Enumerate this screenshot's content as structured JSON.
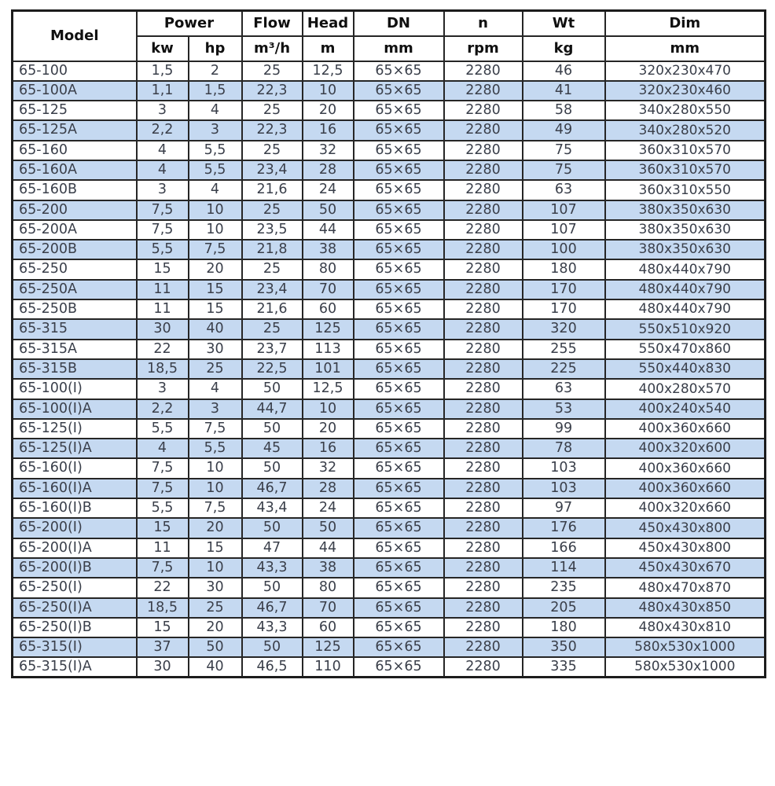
{
  "colors": {
    "stripe_blue": "#c5d9f1",
    "row_white": "#ffffff",
    "border": "#262626",
    "header_text": "#101010",
    "body_text": "#3a3f4a"
  },
  "table": {
    "header": {
      "model": "Model",
      "power": "Power",
      "flow": "Flow",
      "head": "Head",
      "dn": "DN",
      "n": "n",
      "wt": "Wt",
      "dim": "Dim",
      "units": [
        "kw",
        "hp",
        "m³/h",
        "m",
        "mm",
        "rpm",
        "kg",
        "mm"
      ]
    },
    "rows": [
      {
        "model": "65-100",
        "kw": "1,5",
        "hp": "2",
        "flow": "25",
        "head": "12,5",
        "dn": "65×65",
        "rpm": "2280",
        "wt": "46",
        "dim": "320x230x470"
      },
      {
        "model": "65-100A",
        "kw": "1,1",
        "hp": "1,5",
        "flow": "22,3",
        "head": "10",
        "dn": "65×65",
        "rpm": "2280",
        "wt": "41",
        "dim": "320x230x460"
      },
      {
        "model": "65-125",
        "kw": "3",
        "hp": "4",
        "flow": "25",
        "head": "20",
        "dn": "65×65",
        "rpm": "2280",
        "wt": "58",
        "dim": "340x280x550"
      },
      {
        "model": "65-125A",
        "kw": "2,2",
        "hp": "3",
        "flow": "22,3",
        "head": "16",
        "dn": "65×65",
        "rpm": "2280",
        "wt": "49",
        "dim": "340x280x520"
      },
      {
        "model": "65-160",
        "kw": "4",
        "hp": "5,5",
        "flow": "25",
        "head": "32",
        "dn": "65×65",
        "rpm": "2280",
        "wt": "75",
        "dim": "360x310x570"
      },
      {
        "model": "65-160A",
        "kw": "4",
        "hp": "5,5",
        "flow": "23,4",
        "head": "28",
        "dn": "65×65",
        "rpm": "2280",
        "wt": "75",
        "dim": "360x310x570"
      },
      {
        "model": "65-160B",
        "kw": "3",
        "hp": "4",
        "flow": "21,6",
        "head": "24",
        "dn": "65×65",
        "rpm": "2280",
        "wt": "63",
        "dim": "360x310x550"
      },
      {
        "model": "65-200",
        "kw": "7,5",
        "hp": "10",
        "flow": "25",
        "head": "50",
        "dn": "65×65",
        "rpm": "2280",
        "wt": "107",
        "dim": "380x350x630"
      },
      {
        "model": "65-200A",
        "kw": "7,5",
        "hp": "10",
        "flow": "23,5",
        "head": "44",
        "dn": "65×65",
        "rpm": "2280",
        "wt": "107",
        "dim": "380x350x630"
      },
      {
        "model": "65-200B",
        "kw": "5,5",
        "hp": "7,5",
        "flow": "21,8",
        "head": "38",
        "dn": "65×65",
        "rpm": "2280",
        "wt": "100",
        "dim": "380x350x630"
      },
      {
        "model": "65-250",
        "kw": "15",
        "hp": "20",
        "flow": "25",
        "head": "80",
        "dn": "65×65",
        "rpm": "2280",
        "wt": "180",
        "dim": "480x440x790"
      },
      {
        "model": "65-250A",
        "kw": "11",
        "hp": "15",
        "flow": "23,4",
        "head": "70",
        "dn": "65×65",
        "rpm": "2280",
        "wt": "170",
        "dim": "480x440x790"
      },
      {
        "model": "65-250B",
        "kw": "11",
        "hp": "15",
        "flow": "21,6",
        "head": "60",
        "dn": "65×65",
        "rpm": "2280",
        "wt": "170",
        "dim": "480x440x790"
      },
      {
        "model": "65-315",
        "kw": "30",
        "hp": "40",
        "flow": "25",
        "head": "125",
        "dn": "65×65",
        "rpm": "2280",
        "wt": "320",
        "dim": "550x510x920"
      },
      {
        "model": "65-315A",
        "kw": "22",
        "hp": "30",
        "flow": "23,7",
        "head": "113",
        "dn": "65×65",
        "rpm": "2280",
        "wt": "255",
        "dim": "550x470x860"
      },
      {
        "model": "65-315B",
        "kw": "18,5",
        "hp": "25",
        "flow": "22,5",
        "head": "101",
        "dn": "65×65",
        "rpm": "2280",
        "wt": "225",
        "dim": "550x440x830"
      },
      {
        "model": "65-100(I)",
        "kw": "3",
        "hp": "4",
        "flow": "50",
        "head": "12,5",
        "dn": "65×65",
        "rpm": "2280",
        "wt": "63",
        "dim": "400x280x570"
      },
      {
        "model": "65-100(I)A",
        "kw": "2,2",
        "hp": "3",
        "flow": "44,7",
        "head": "10",
        "dn": "65×65",
        "rpm": "2280",
        "wt": "53",
        "dim": "400x240x540"
      },
      {
        "model": "65-125(I)",
        "kw": "5,5",
        "hp": "7,5",
        "flow": "50",
        "head": "20",
        "dn": "65×65",
        "rpm": "2280",
        "wt": "99",
        "dim": "400x360x660"
      },
      {
        "model": "65-125(I)A",
        "kw": "4",
        "hp": "5,5",
        "flow": "45",
        "head": "16",
        "dn": "65×65",
        "rpm": "2280",
        "wt": "78",
        "dim": "400x320x600"
      },
      {
        "model": "65-160(I)",
        "kw": "7,5",
        "hp": "10",
        "flow": "50",
        "head": "32",
        "dn": "65×65",
        "rpm": "2280",
        "wt": "103",
        "dim": "400x360x660"
      },
      {
        "model": "65-160(I)A",
        "kw": "7,5",
        "hp": "10",
        "flow": "46,7",
        "head": "28",
        "dn": "65×65",
        "rpm": "2280",
        "wt": "103",
        "dim": "400x360x660"
      },
      {
        "model": "65-160(I)B",
        "kw": "5,5",
        "hp": "7,5",
        "flow": "43,4",
        "head": "24",
        "dn": "65×65",
        "rpm": "2280",
        "wt": "97",
        "dim": "400x320x660"
      },
      {
        "model": "65-200(I)",
        "kw": "15",
        "hp": "20",
        "flow": "50",
        "head": "50",
        "dn": "65×65",
        "rpm": "2280",
        "wt": "176",
        "dim": "450x430x800"
      },
      {
        "model": "65-200(I)A",
        "kw": "11",
        "hp": "15",
        "flow": "47",
        "head": "44",
        "dn": "65×65",
        "rpm": "2280",
        "wt": "166",
        "dim": "450x430x800"
      },
      {
        "model": "65-200(I)B",
        "kw": "7,5",
        "hp": "10",
        "flow": "43,3",
        "head": "38",
        "dn": "65×65",
        "rpm": "2280",
        "wt": "114",
        "dim": "450x430x670"
      },
      {
        "model": "65-250(I)",
        "kw": "22",
        "hp": "30",
        "flow": "50",
        "head": "80",
        "dn": "65×65",
        "rpm": "2280",
        "wt": "235",
        "dim": "480x470x870"
      },
      {
        "model": "65-250(I)A",
        "kw": "18,5",
        "hp": "25",
        "flow": "46,7",
        "head": "70",
        "dn": "65×65",
        "rpm": "2280",
        "wt": "205",
        "dim": "480x430x850"
      },
      {
        "model": "65-250(I)B",
        "kw": "15",
        "hp": "20",
        "flow": "43,3",
        "head": "60",
        "dn": "65×65",
        "rpm": "2280",
        "wt": "180",
        "dim": "480x430x810"
      },
      {
        "model": "65-315(I)",
        "kw": "37",
        "hp": "50",
        "flow": "50",
        "head": "125",
        "dn": "65×65",
        "rpm": "2280",
        "wt": "350",
        "dim": "580x530x1000"
      },
      {
        "model": "65-315(I)A",
        "kw": "30",
        "hp": "40",
        "flow": "46,5",
        "head": "110",
        "dn": "65×65",
        "rpm": "2280",
        "wt": "335",
        "dim": "580x530x1000"
      }
    ]
  }
}
